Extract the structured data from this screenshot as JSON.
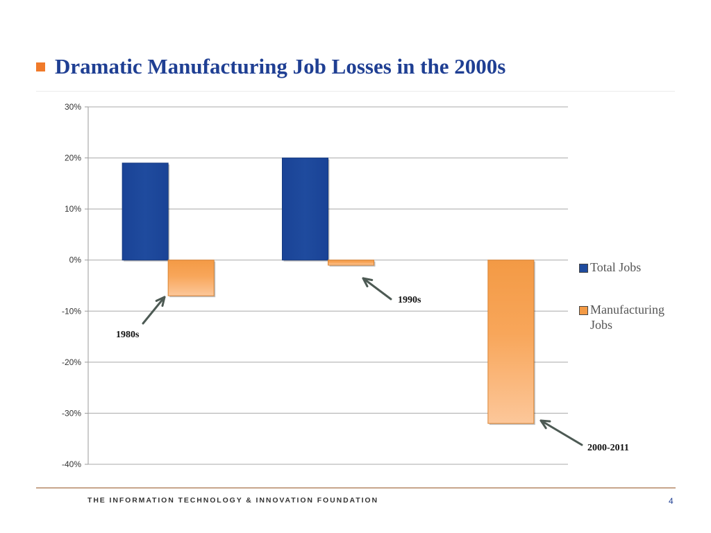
{
  "slide": {
    "title": "Dramatic Manufacturing Job Losses in the 2000s",
    "footer": "THE INFORMATION TECHNOLOGY & INNOVATION FOUNDATION",
    "page_number": "4",
    "colors": {
      "title": "#1f3f93",
      "bullet": "#f07a2a",
      "footer_rule": "#c7a58b"
    }
  },
  "chart_data": {
    "type": "bar",
    "categories": [
      "1980s",
      "1990s",
      "2000-2011"
    ],
    "series": [
      {
        "name": "Total Jobs",
        "values": [
          19,
          20,
          0
        ],
        "color": "#1f4b9e"
      },
      {
        "name": "Manufacturing Jobs",
        "values": [
          -7,
          -1,
          -32
        ],
        "color": "#f39a45"
      }
    ],
    "ylim": [
      -40,
      30
    ],
    "yticks": [
      "30%",
      "20%",
      "10%",
      "0%",
      "-10%",
      "-20%",
      "-30%",
      "-40%"
    ],
    "ytick_values": [
      30,
      20,
      10,
      0,
      -10,
      -20,
      -30,
      -40
    ],
    "grid": true,
    "legend_position": "right",
    "annotations": [
      "1980s",
      "1990s",
      "2000-2011"
    ]
  }
}
